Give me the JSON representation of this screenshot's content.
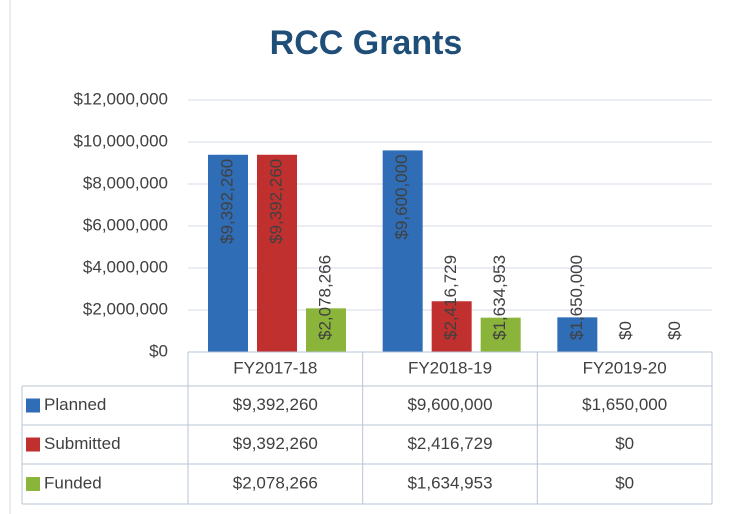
{
  "chart_data": {
    "type": "bar",
    "title": "RCC Grants",
    "categories": [
      "FY2017-18",
      "FY2018-19",
      "FY2019-20"
    ],
    "series": [
      {
        "name": "Planned",
        "color": "#2f6db6",
        "values": [
          9392260,
          9600000,
          1650000
        ],
        "value_labels": [
          "$9,392,260",
          "$9,600,000",
          "$1,650,000"
        ]
      },
      {
        "name": "Submitted",
        "color": "#c0302e",
        "values": [
          9392260,
          2416729,
          0
        ],
        "value_labels": [
          "$9,392,260",
          "$2,416,729",
          "$0"
        ]
      },
      {
        "name": "Funded",
        "color": "#8ab43a",
        "values": [
          2078266,
          1634953,
          0
        ],
        "value_labels": [
          "$2,078,266",
          "$1,634,953",
          "$0"
        ]
      }
    ],
    "ylim": [
      0,
      12000000
    ],
    "yticks": [
      {
        "value": 0,
        "label": "$0"
      },
      {
        "value": 2000000,
        "label": "$2,000,000"
      },
      {
        "value": 4000000,
        "label": "$4,000,000"
      },
      {
        "value": 6000000,
        "label": "$6,000,000"
      },
      {
        "value": 8000000,
        "label": "$8,000,000"
      },
      {
        "value": 10000000,
        "label": "$10,000,000"
      },
      {
        "value": 12000000,
        "label": "$12,000,000"
      }
    ],
    "grid": true,
    "data_table": true
  }
}
